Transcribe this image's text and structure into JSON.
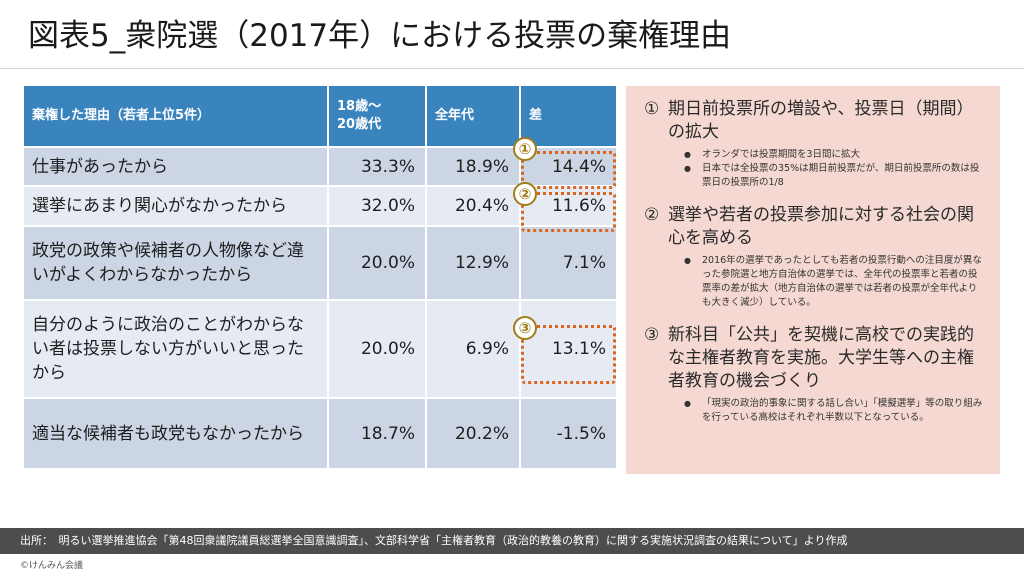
{
  "title": "図表5_衆院選（2017年）における投票の棄権理由",
  "table": {
    "headers": [
      "棄権した理由（若者上位5件）",
      "18歳～\n20歳代",
      "全年代",
      "差"
    ],
    "rows": [
      {
        "reason": "仕事があったから",
        "young": "33.3%",
        "all": "18.9%",
        "diff": "14.4%"
      },
      {
        "reason": "選挙にあまり関心がなかったから",
        "young": "32.0%",
        "all": "20.4%",
        "diff": "11.6%"
      },
      {
        "reason": "政党の政策や候補者の人物像など違いがよくわからなかったから",
        "young": "20.0%",
        "all": "12.9%",
        "diff": "7.1%"
      },
      {
        "reason": "自分のように政治のことがわからない者は投票しない方がいいと思ったから",
        "young": "20.0%",
        "all": "6.9%",
        "diff": "13.1%"
      },
      {
        "reason": "適当な候補者も政党もなかったから",
        "young": "18.7%",
        "all": "20.2%",
        "diff": "-1.5%"
      }
    ],
    "markers": [
      "①",
      "②",
      "③"
    ]
  },
  "points": [
    {
      "num": "①",
      "text": "期日前投票所の増設や、投票日（期間）の拡大",
      "bullets": [
        "オランダでは投票期間を3日間に拡大",
        "日本では全投票の35%は期日前投票だが、期日前投票所の数は投票日の投票所の1/8"
      ]
    },
    {
      "num": "②",
      "text": "選挙や若者の投票参加に対する社会の関心を高める",
      "bullets": [
        "2016年の選挙であったとしても若者の投票行動への注目度が異なった参院選と地方自治体の選挙では、全年代の投票率と若者の投票率の差が拡大（地方自治体の選挙では若者の投票が全年代よりも大きく減少）している。"
      ]
    },
    {
      "num": "③",
      "text": "新科目「公共」を契機に高校での実践的な主権者教育を実施。大学生等への主権者教育の機会づくり",
      "bullets": [
        "「現実の政治的事象に関する話し合い」「模擬選挙」等の取り組みを行っている高校はそれぞれ半数以下となっている。"
      ]
    }
  ],
  "source": "出所：　明るい選挙推進協会「第48回衆議院議員総選挙全国意識調査」、文部科学省「主権者教育（政治的教養の教育）に関する実施状況調査の結果について」より作成",
  "copyright": "©けんみん会議",
  "colors": {
    "header_blue": "#3a84bd",
    "row_dark": "#cbd5e4",
    "row_light": "#e6ebf3",
    "panel_pink": "#f4d8d1",
    "highlight_orange": "#d9651e",
    "marker_gold": "#a07d1a",
    "footer_gray": "#4d4d4d"
  }
}
